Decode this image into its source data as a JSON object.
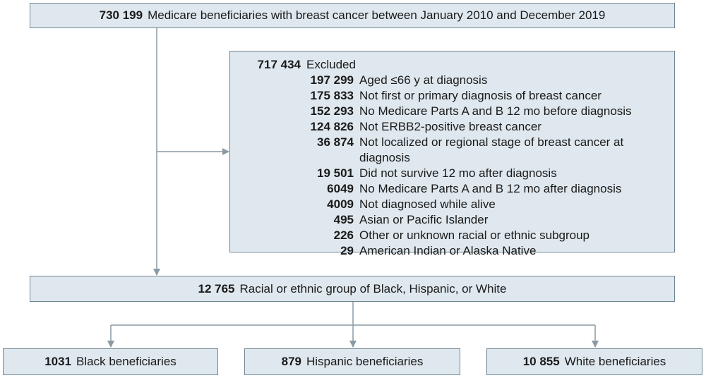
{
  "top": {
    "count": "730 199",
    "label": "Medicare beneficiaries with breast cancer between January 2010 and December 2019"
  },
  "excluded": {
    "count": "717 434",
    "label": "Excluded",
    "items": [
      {
        "count": "197 299",
        "label": "Aged ≤66 y at diagnosis"
      },
      {
        "count": "175 833",
        "label": "Not first or primary diagnosis of breast cancer"
      },
      {
        "count": "152 293",
        "label": "No Medicare Parts A and B 12 mo before diagnosis"
      },
      {
        "count": "124 826",
        "label": "Not ERBB2-positive breast cancer"
      },
      {
        "count": "36 874",
        "label": "Not localized or regional stage of breast cancer at diagnosis"
      },
      {
        "count": "19 501",
        "label": "Did not survive 12 mo after diagnosis"
      },
      {
        "count": "6049",
        "label": "No Medicare Parts A and B 12 mo after diagnosis"
      },
      {
        "count": "4009",
        "label": "Not diagnosed while alive"
      },
      {
        "count": "495",
        "label": "Asian or Pacific Islander"
      },
      {
        "count": "226",
        "label": "Other or unknown racial or ethnic subgroup"
      },
      {
        "count": "29",
        "label": "American Indian or Alaska Native"
      }
    ]
  },
  "middle": {
    "count": "12 765",
    "label": "Racial or ethnic group of Black, Hispanic, or White"
  },
  "groups": [
    {
      "count": "1031",
      "label": "Black beneficiaries"
    },
    {
      "count": "879",
      "label": "Hispanic beneficiaries"
    },
    {
      "count": "10 855",
      "label": "White beneficiaries"
    }
  ],
  "colors": {
    "box_fill": "#dfe8ee",
    "box_border": "#6f8592",
    "arrow": "#8a9aa4"
  }
}
